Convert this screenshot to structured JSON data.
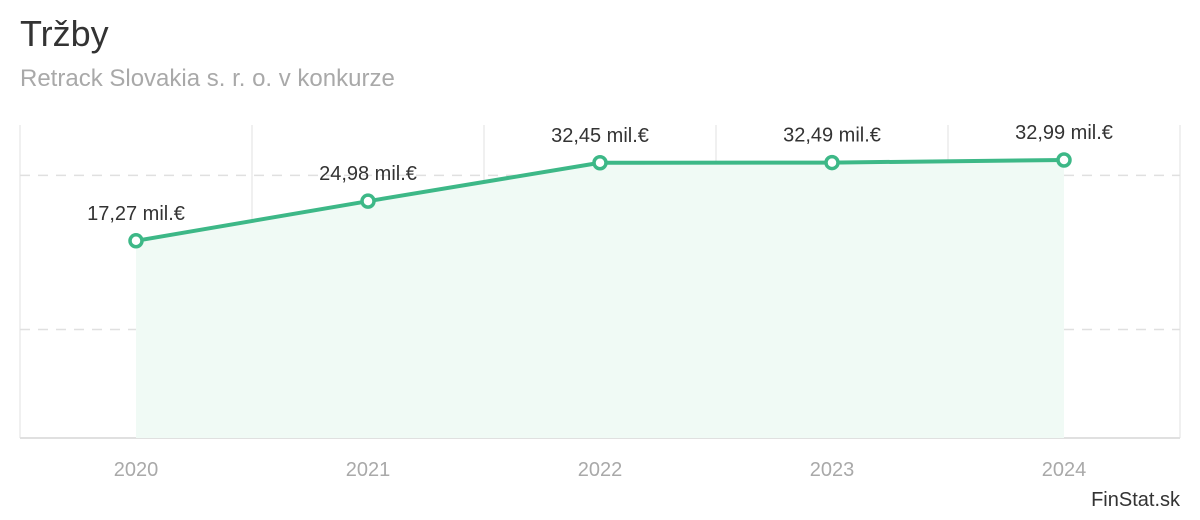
{
  "header": {
    "title": "Tržby",
    "subtitle": "Retrack Slovakia s. r. o. v konkurze"
  },
  "footer": {
    "credit": "FinStat.sk"
  },
  "chart_data": {
    "type": "area",
    "title": "Tržby",
    "subtitle": "Retrack Slovakia s. r. o. v konkurze",
    "xlabel": "",
    "ylabel": "",
    "categories": [
      "2020",
      "2021",
      "2022",
      "2023",
      "2024"
    ],
    "series": [
      {
        "values": [
          17.27,
          24.98,
          32.45,
          32.49,
          32.99
        ],
        "labels": [
          "17,27 mil.€",
          "24,98 mil.€",
          "32,45 mil.€",
          "32,49 mil.€",
          "32,99 mil.€"
        ]
      }
    ],
    "ylim": [
      -21.1,
      39.8
    ],
    "grid": true,
    "legend": "none",
    "colors": {
      "line": "#3db887",
      "fill": "#f0faf5",
      "grid": "#e0e0e0",
      "point_fill": "#ffffff"
    }
  }
}
